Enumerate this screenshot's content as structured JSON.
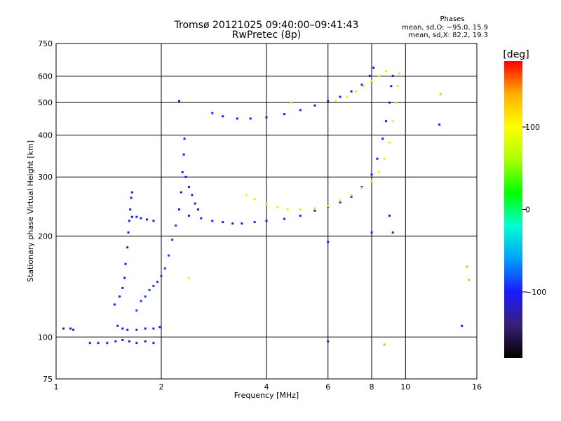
{
  "title_line1": "Tromsø 20121025 09:40:00–09:41:43",
  "title_line2": "RwPretec (8p)",
  "phases_box": {
    "heading": "Phases",
    "o_line": "mean, sd,O: −95.0, 15.9",
    "x_line": "mean, sd,X:  82.2, 19.3"
  },
  "colorbar": {
    "unit_label": "[deg]",
    "tick_labels": [
      "100",
      "0",
      "−100"
    ],
    "tick_values": [
      100,
      0,
      -100
    ],
    "range": [
      -180,
      180
    ],
    "colors": [
      "#000000",
      "#3a1f7a",
      "#1a1aff",
      "#00a0ff",
      "#00ffd0",
      "#00ff00",
      "#aaff00",
      "#ffff00",
      "#ffb000",
      "#ff0000"
    ]
  },
  "chart_data": {
    "type": "scatter",
    "xlabel": "Frequency [MHz]",
    "ylabel": "Stationary phase Virtual Height [km]",
    "xscale": "log",
    "yscale": "log",
    "xlim": [
      1,
      16
    ],
    "ylim": [
      75,
      750
    ],
    "x_ticks": [
      1,
      2,
      4,
      6,
      8,
      10,
      16
    ],
    "x_tick_labels": [
      "1",
      "2",
      "4",
      "6",
      "8",
      "10",
      "16"
    ],
    "y_ticks": [
      75,
      100,
      200,
      300,
      400,
      500,
      600,
      750
    ],
    "y_tick_labels": [
      "75",
      "100",
      "200",
      "300",
      "400",
      "500",
      "600",
      "750"
    ],
    "grid": true,
    "series": [
      {
        "mode": "O",
        "points": [
          [
            1.05,
            106,
            -110
          ],
          [
            1.1,
            106,
            -110
          ],
          [
            1.12,
            105,
            -110
          ],
          [
            1.25,
            96,
            -105
          ],
          [
            1.32,
            96,
            -105
          ],
          [
            1.4,
            96,
            -105
          ],
          [
            1.48,
            97,
            -105
          ],
          [
            1.55,
            98,
            -105
          ],
          [
            1.62,
            97,
            -100
          ],
          [
            1.7,
            96,
            -100
          ],
          [
            1.8,
            97,
            -105
          ],
          [
            1.9,
            96,
            -105
          ],
          [
            1.5,
            108,
            -100
          ],
          [
            1.55,
            106,
            -100
          ],
          [
            1.6,
            105,
            -100
          ],
          [
            1.7,
            105,
            -100
          ],
          [
            1.8,
            106,
            -100
          ],
          [
            1.9,
            106,
            -100
          ],
          [
            1.98,
            107,
            -100
          ],
          [
            1.47,
            125,
            -100
          ],
          [
            1.52,
            132,
            -100
          ],
          [
            1.55,
            140,
            -100
          ],
          [
            1.57,
            150,
            -100
          ],
          [
            1.58,
            165,
            -100
          ],
          [
            1.6,
            185,
            -100
          ],
          [
            1.61,
            205,
            -100
          ],
          [
            1.62,
            222,
            -100
          ],
          [
            1.63,
            240,
            -100
          ],
          [
            1.64,
            260,
            -100
          ],
          [
            1.65,
            270,
            -100
          ],
          [
            1.65,
            228,
            -100
          ],
          [
            1.7,
            228,
            -100
          ],
          [
            1.75,
            226,
            -100
          ],
          [
            1.82,
            224,
            -100
          ],
          [
            1.9,
            222,
            -100
          ],
          [
            1.7,
            120,
            -90
          ],
          [
            1.75,
            128,
            -90
          ],
          [
            1.8,
            132,
            -90
          ],
          [
            1.85,
            138,
            -90
          ],
          [
            1.9,
            142,
            -90
          ],
          [
            1.95,
            146,
            -90
          ],
          [
            2.0,
            152,
            -90
          ],
          [
            2.05,
            160,
            -90
          ],
          [
            2.1,
            175,
            -90
          ],
          [
            2.15,
            195,
            -90
          ],
          [
            2.2,
            215,
            -90
          ],
          [
            2.25,
            240,
            -100
          ],
          [
            2.28,
            270,
            -100
          ],
          [
            2.3,
            310,
            -100
          ],
          [
            2.32,
            350,
            -100
          ],
          [
            2.33,
            390,
            -100
          ],
          [
            2.35,
            300,
            -100
          ],
          [
            2.4,
            280,
            -100
          ],
          [
            2.45,
            265,
            -100
          ],
          [
            2.5,
            250,
            -100
          ],
          [
            2.55,
            240,
            -100
          ],
          [
            2.4,
            230,
            -100
          ],
          [
            2.6,
            226,
            -100
          ],
          [
            2.8,
            222,
            -100
          ],
          [
            3.0,
            220,
            -100
          ],
          [
            3.2,
            218,
            -100
          ],
          [
            3.4,
            218,
            -100
          ],
          [
            3.7,
            220,
            -100
          ],
          [
            4.0,
            222,
            -100
          ],
          [
            4.5,
            225,
            -100
          ],
          [
            5.0,
            230,
            -100
          ],
          [
            5.5,
            238,
            -100
          ],
          [
            6.0,
            245,
            -100
          ],
          [
            6.5,
            252,
            -100
          ],
          [
            7.0,
            262,
            -100
          ],
          [
            7.5,
            280,
            -100
          ],
          [
            8.0,
            305,
            -100
          ],
          [
            8.3,
            340,
            -100
          ],
          [
            8.6,
            390,
            -100
          ],
          [
            8.8,
            440,
            -100
          ],
          [
            9.0,
            500,
            -100
          ],
          [
            9.1,
            560,
            -100
          ],
          [
            9.2,
            600,
            -100
          ],
          [
            2.8,
            465,
            -100
          ],
          [
            3.0,
            455,
            -100
          ],
          [
            3.3,
            448,
            -100
          ],
          [
            3.6,
            448,
            -100
          ],
          [
            4.0,
            452,
            -100
          ],
          [
            4.5,
            462,
            -100
          ],
          [
            5.0,
            475,
            -100
          ],
          [
            5.5,
            490,
            -100
          ],
          [
            6.0,
            505,
            -100
          ],
          [
            6.5,
            520,
            -100
          ],
          [
            7.0,
            540,
            -100
          ],
          [
            7.5,
            565,
            -100
          ],
          [
            7.9,
            600,
            -100
          ],
          [
            8.1,
            635,
            -100
          ],
          [
            2.25,
            505,
            -100
          ],
          [
            6.0,
            192,
            -100
          ],
          [
            6.0,
            97,
            -100
          ],
          [
            8.0,
            205,
            -100
          ],
          [
            9.0,
            230,
            -100
          ],
          [
            9.2,
            205,
            -100
          ],
          [
            12.5,
            430,
            -100
          ],
          [
            14.5,
            108,
            -100
          ]
        ]
      },
      {
        "mode": "X",
        "points": [
          [
            3.5,
            265,
            80
          ],
          [
            3.7,
            258,
            80
          ],
          [
            4.0,
            250,
            80
          ],
          [
            4.3,
            244,
            80
          ],
          [
            4.6,
            240,
            80
          ],
          [
            5.0,
            240,
            80
          ],
          [
            5.5,
            242,
            80
          ],
          [
            6.0,
            246,
            80
          ],
          [
            6.5,
            255,
            80
          ],
          [
            7.0,
            265,
            80
          ],
          [
            7.5,
            278,
            80
          ],
          [
            8.0,
            292,
            80
          ],
          [
            8.4,
            310,
            80
          ],
          [
            8.7,
            340,
            80
          ],
          [
            9.0,
            380,
            80
          ],
          [
            9.2,
            440,
            80
          ],
          [
            9.4,
            500,
            80
          ],
          [
            9.5,
            560,
            80
          ],
          [
            9.6,
            610,
            80
          ],
          [
            6.3,
            505,
            80
          ],
          [
            6.8,
            520,
            80
          ],
          [
            7.2,
            540,
            80
          ],
          [
            7.6,
            560,
            80
          ],
          [
            8.0,
            580,
            80
          ],
          [
            8.4,
            600,
            80
          ],
          [
            8.8,
            620,
            80
          ],
          [
            4.7,
            500,
            60
          ],
          [
            12.6,
            530,
            130
          ],
          [
            15.0,
            162,
            140
          ],
          [
            15.2,
            148,
            140
          ],
          [
            8.7,
            95,
            140
          ],
          [
            2.4,
            150,
            90
          ]
        ]
      }
    ]
  }
}
